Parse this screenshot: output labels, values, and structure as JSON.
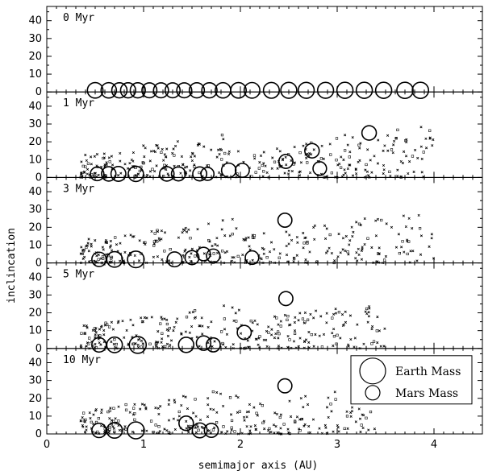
{
  "chart_data": {
    "type": "scatter",
    "xlabel": "semimajor axis (AU)",
    "ylabel": "inclincation",
    "xlim": [
      0,
      4.5
    ],
    "ylim": [
      0,
      48
    ],
    "x_ticks": [
      "0",
      "1",
      "2",
      "3",
      "4"
    ],
    "y_ticks": [
      "0",
      "10",
      "20",
      "30",
      "40"
    ],
    "legend": {
      "placement": "bottom-panel right",
      "entries": [
        {
          "label": "Earth Mass",
          "radius_mass": "earth"
        },
        {
          "label": "Mars Mass",
          "radius_mass": "mars"
        }
      ]
    },
    "panels": [
      {
        "label": "0 Myr",
        "embryos": [
          {
            "a": 0.5,
            "i": 0,
            "m": 0.65
          },
          {
            "a": 0.64,
            "i": 0,
            "m": 0.62
          },
          {
            "a": 0.75,
            "i": 0,
            "m": 0.6
          },
          {
            "a": 0.84,
            "i": 0,
            "m": 0.58
          },
          {
            "a": 0.94,
            "i": 0,
            "m": 0.58
          },
          {
            "a": 1.06,
            "i": 0,
            "m": 0.56
          },
          {
            "a": 1.18,
            "i": 0,
            "m": 0.56
          },
          {
            "a": 1.3,
            "i": 0,
            "m": 0.56
          },
          {
            "a": 1.42,
            "i": 0,
            "m": 0.56
          },
          {
            "a": 1.55,
            "i": 0,
            "m": 0.58
          },
          {
            "a": 1.68,
            "i": 0,
            "m": 0.6
          },
          {
            "a": 1.82,
            "i": 0,
            "m": 0.62
          },
          {
            "a": 1.98,
            "i": 0,
            "m": 0.64
          },
          {
            "a": 2.12,
            "i": 0,
            "m": 0.66
          },
          {
            "a": 2.32,
            "i": 0,
            "m": 0.68
          },
          {
            "a": 2.5,
            "i": 0,
            "m": 0.7
          },
          {
            "a": 2.68,
            "i": 0,
            "m": 0.7
          },
          {
            "a": 2.88,
            "i": 0,
            "m": 0.7
          },
          {
            "a": 3.08,
            "i": 0,
            "m": 0.72
          },
          {
            "a": 3.28,
            "i": 0,
            "m": 0.72
          },
          {
            "a": 3.48,
            "i": 0,
            "m": 0.72
          },
          {
            "a": 3.7,
            "i": 0,
            "m": 0.74
          },
          {
            "a": 3.86,
            "i": 0,
            "m": 0.74
          }
        ],
        "particles": {
          "count": 0
        }
      },
      {
        "label": "1 Myr",
        "embryos": [
          {
            "a": 0.52,
            "i": 2,
            "m": 0.4
          },
          {
            "a": 0.64,
            "i": 2,
            "m": 0.5
          },
          {
            "a": 0.74,
            "i": 2,
            "m": 0.55
          },
          {
            "a": 0.92,
            "i": 2,
            "m": 0.6
          },
          {
            "a": 1.24,
            "i": 2,
            "m": 0.5
          },
          {
            "a": 1.36,
            "i": 2,
            "m": 0.45
          },
          {
            "a": 1.58,
            "i": 2,
            "m": 0.45
          },
          {
            "a": 1.66,
            "i": 2,
            "m": 0.35
          },
          {
            "a": 1.88,
            "i": 4,
            "m": 0.5
          },
          {
            "a": 2.02,
            "i": 4,
            "m": 0.45
          },
          {
            "a": 2.47,
            "i": 9,
            "m": 0.45
          },
          {
            "a": 2.74,
            "i": 15,
            "m": 0.5
          },
          {
            "a": 2.82,
            "i": 5,
            "m": 0.4
          },
          {
            "a": 3.33,
            "i": 25,
            "m": 0.5
          }
        ],
        "particles": {
          "count": 330,
          "a_min": 0.35,
          "a_max": 4.0,
          "i_max": 35
        }
      },
      {
        "label": "3 Myr",
        "embryos": [
          {
            "a": 0.54,
            "i": 2,
            "m": 0.5
          },
          {
            "a": 0.7,
            "i": 2,
            "m": 0.65
          },
          {
            "a": 0.92,
            "i": 2,
            "m": 0.8
          },
          {
            "a": 1.32,
            "i": 2,
            "m": 0.55
          },
          {
            "a": 1.5,
            "i": 3,
            "m": 0.45
          },
          {
            "a": 1.62,
            "i": 5,
            "m": 0.4
          },
          {
            "a": 1.72,
            "i": 4,
            "m": 0.4
          },
          {
            "a": 2.12,
            "i": 3,
            "m": 0.4
          },
          {
            "a": 2.46,
            "i": 24,
            "m": 0.45
          }
        ],
        "particles": {
          "count": 300,
          "a_min": 0.35,
          "a_max": 4.0,
          "i_max": 35
        }
      },
      {
        "label": "5 Myr",
        "embryos": [
          {
            "a": 0.54,
            "i": 2,
            "m": 0.5
          },
          {
            "a": 0.7,
            "i": 2,
            "m": 0.65
          },
          {
            "a": 0.94,
            "i": 2,
            "m": 0.85
          },
          {
            "a": 1.44,
            "i": 2,
            "m": 0.6
          },
          {
            "a": 1.62,
            "i": 3,
            "m": 0.5
          },
          {
            "a": 1.72,
            "i": 2,
            "m": 0.45
          },
          {
            "a": 2.04,
            "i": 9,
            "m": 0.45
          },
          {
            "a": 2.47,
            "i": 28,
            "m": 0.45
          }
        ],
        "particles": {
          "count": 280,
          "a_min": 0.35,
          "a_max": 3.5,
          "i_max": 30
        }
      },
      {
        "label": "10 Myr",
        "embryos": [
          {
            "a": 0.54,
            "i": 2,
            "m": 0.5
          },
          {
            "a": 0.7,
            "i": 2,
            "m": 0.65
          },
          {
            "a": 0.92,
            "i": 2,
            "m": 0.85
          },
          {
            "a": 1.44,
            "i": 6,
            "m": 0.5
          },
          {
            "a": 1.58,
            "i": 2,
            "m": 0.55
          },
          {
            "a": 1.7,
            "i": 2,
            "m": 0.45
          },
          {
            "a": 2.46,
            "i": 27,
            "m": 0.45
          }
        ],
        "particles": {
          "count": 260,
          "a_min": 0.35,
          "a_max": 3.4,
          "i_max": 30
        }
      }
    ]
  }
}
